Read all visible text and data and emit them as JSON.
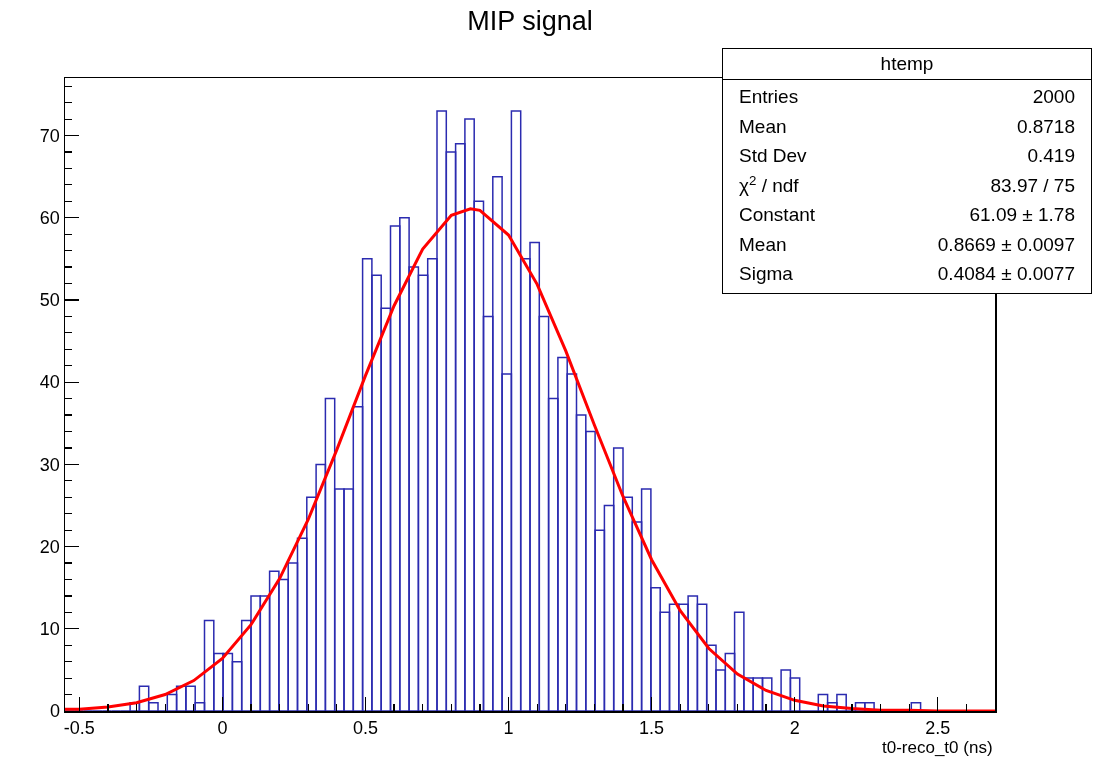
{
  "chart_data": {
    "type": "histogram",
    "title": "MIP signal",
    "xlabel": "t0-reco_t0 (ns)",
    "bins": [
      -0.55,
      -0.5175,
      -0.485,
      -0.4525,
      -0.42,
      -0.3875,
      -0.355,
      -0.3225,
      -0.29,
      -0.2575,
      -0.225,
      -0.1925,
      -0.16,
      -0.1275,
      -0.095,
      -0.0625,
      -0.03,
      0.0025,
      0.035,
      0.0675,
      0.1,
      0.1325,
      0.165,
      0.1975,
      0.23,
      0.2625,
      0.295,
      0.3275,
      0.36,
      0.3925,
      0.425,
      0.4575,
      0.49,
      0.5225,
      0.555,
      0.5875,
      0.62,
      0.6525,
      0.685,
      0.7175,
      0.75,
      0.7825,
      0.815,
      0.8475,
      0.88,
      0.9125,
      0.945,
      0.9775,
      1.01,
      1.0425,
      1.075,
      1.1075,
      1.14,
      1.1725,
      1.205,
      1.2375,
      1.27,
      1.3025,
      1.335,
      1.3675,
      1.4,
      1.4325,
      1.465,
      1.4975,
      1.53,
      1.5625,
      1.595,
      1.6275,
      1.66,
      1.6925,
      1.725,
      1.7575,
      1.79,
      1.8225,
      1.855,
      1.8875,
      1.92,
      1.9525,
      1.985,
      2.0175,
      2.05,
      2.0825,
      2.115,
      2.1475,
      2.18,
      2.2125,
      2.245,
      2.2775,
      2.31,
      2.3425,
      2.375,
      2.4075,
      2.44,
      2.4725,
      2.505,
      2.5375,
      2.57,
      2.6025,
      2.635,
      2.6675,
      2.7
    ],
    "series": [
      {
        "color": "#2b2bb0",
        "values": [
          0,
          0,
          0,
          0,
          0,
          0,
          0,
          1,
          3,
          1,
          0,
          2,
          3,
          3,
          1,
          11,
          7,
          7,
          6,
          11,
          14,
          14,
          17,
          16,
          18,
          21,
          26,
          30,
          38,
          27,
          27,
          37,
          55,
          53,
          49,
          59,
          60,
          54,
          53,
          55,
          73,
          68,
          69,
          72,
          62,
          48,
          65,
          41,
          73,
          55,
          57,
          48,
          38,
          43,
          41,
          36,
          34,
          22,
          25,
          32,
          26,
          23,
          27,
          15,
          12,
          13,
          13,
          14,
          13,
          8,
          5,
          7,
          12,
          4,
          4,
          4,
          0,
          5,
          4,
          0,
          0,
          2,
          1,
          2,
          0,
          1,
          1,
          0,
          0,
          0,
          0,
          1,
          0,
          0,
          0,
          0,
          0,
          0,
          0,
          0
        ]
      },
      {
        "type": "line",
        "color": "#ff0000",
        "x": [
          -0.55,
          -0.5,
          -0.4,
          -0.3,
          -0.2,
          -0.1,
          0,
          0.1,
          0.2,
          0.3,
          0.4,
          0.5,
          0.6,
          0.7,
          0.8,
          0.8669,
          0.9,
          1.0,
          1.1,
          1.2,
          1.3,
          1.4,
          1.5,
          1.6,
          1.7,
          1.8,
          1.9,
          2.0,
          2.1,
          2.2,
          2.3,
          2.4,
          2.5,
          2.7
        ],
        "values": [
          0.2,
          0.2,
          0.5,
          1.0,
          2.0,
          3.7,
          6.4,
          10.5,
          16.1,
          23.3,
          31.8,
          40.8,
          49.3,
          56.2,
          60.3,
          61.1,
          60.9,
          57.9,
          51.9,
          43.8,
          34.8,
          26.1,
          18.4,
          12.2,
          7.6,
          4.5,
          2.5,
          1.3,
          0.6,
          0.3,
          0.1,
          0.1,
          0,
          0
        ]
      }
    ],
    "xlim": [
      -0.55,
      2.7
    ],
    "xticks": [
      -0.5,
      {
        "value": -0.4,
        "label": null
      },
      {
        "value": -0.3,
        "label": null
      },
      {
        "value": -0.2,
        "label": null
      },
      {
        "value": -0.1,
        "label": null
      },
      0,
      {
        "value": 0.1,
        "label": null
      },
      {
        "value": 0.2,
        "label": null
      },
      {
        "value": 0.3,
        "label": null
      },
      {
        "value": 0.4,
        "label": null
      },
      0.5,
      {
        "value": 0.6,
        "label": null
      },
      {
        "value": 0.7,
        "label": null
      },
      {
        "value": 0.8,
        "label": null
      },
      {
        "value": 0.9,
        "label": null
      },
      1,
      {
        "value": 1.1,
        "label": null
      },
      {
        "value": 1.2,
        "label": null
      },
      {
        "value": 1.3,
        "label": null
      },
      {
        "value": 1.4,
        "label": null
      },
      1.5,
      {
        "value": 1.6,
        "label": null
      },
      {
        "value": 1.7,
        "label": null
      },
      {
        "value": 1.8,
        "label": null
      },
      {
        "value": 1.9,
        "label": null
      },
      2,
      {
        "value": 2.1,
        "label": null
      },
      {
        "value": 2.2,
        "label": null
      },
      {
        "value": 2.3,
        "label": null
      },
      {
        "value": 2.4,
        "label": null
      },
      2.5,
      {
        "value": 2.6,
        "label": null
      }
    ],
    "ylim": [
      0,
      77
    ],
    "yticks": [
      0,
      {
        "value": 2,
        "label": null
      },
      {
        "value": 4,
        "label": null
      },
      {
        "value": 6,
        "label": null
      },
      {
        "value": 8,
        "label": null
      },
      10,
      {
        "value": 12,
        "label": null
      },
      {
        "value": 14,
        "label": null
      },
      {
        "value": 16,
        "label": null
      },
      {
        "value": 18,
        "label": null
      },
      20,
      {
        "value": 22,
        "label": null
      },
      {
        "value": 24,
        "label": null
      },
      {
        "value": 26,
        "label": null
      },
      {
        "value": 28,
        "label": null
      },
      30,
      {
        "value": 32,
        "label": null
      },
      {
        "value": 34,
        "label": null
      },
      {
        "value": 36,
        "label": null
      },
      {
        "value": 38,
        "label": null
      },
      40,
      {
        "value": 42,
        "label": null
      },
      {
        "value": 44,
        "label": null
      },
      {
        "value": 46,
        "label": null
      },
      {
        "value": 48,
        "label": null
      },
      50,
      {
        "value": 52,
        "label": null
      },
      {
        "value": 54,
        "label": null
      },
      {
        "value": 56,
        "label": null
      },
      {
        "value": 58,
        "label": null
      },
      60,
      {
        "value": 62,
        "label": null
      },
      {
        "value": 64,
        "label": null
      },
      {
        "value": 66,
        "label": null
      },
      {
        "value": 68,
        "label": null
      },
      70,
      {
        "value": 72,
        "label": null
      },
      {
        "value": 74,
        "label": null
      },
      {
        "value": 76,
        "label": null
      }
    ],
    "annotations": [
      "htemp",
      "Entries",
      "2000",
      "Mean",
      "0.8718",
      "Std Dev",
      "0.419",
      "χ$^{2}$ / ndf",
      "83.97 / 75",
      "Constant",
      "61.09 ± 1.78",
      "Mean",
      "0.8669 ± 0.0097",
      "Sigma",
      "0.4084 ± 0.0077"
    ]
  }
}
